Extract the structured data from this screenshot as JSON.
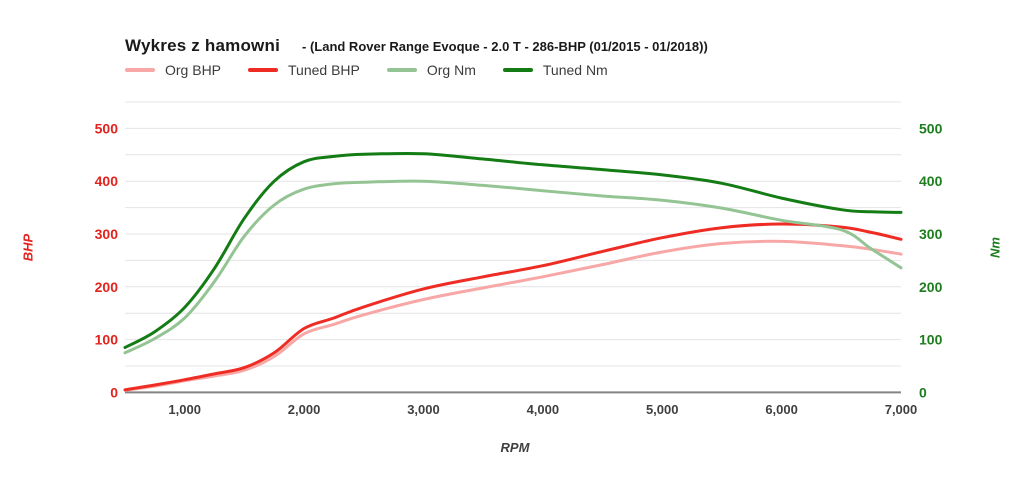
{
  "chart_data": {
    "type": "line",
    "title": "Wykres z hamowni",
    "subtitle": "- (Land Rover Range Evoque - 2.0 T - 286-BHP (01/2015 - 01/2018))",
    "xlabel": "RPM",
    "x_range": [
      500,
      7000
    ],
    "y_max": 550,
    "y_gridline_step": 50,
    "grid_on": true,
    "legend_position": "top",
    "x": [
      500,
      750,
      1000,
      1250,
      1500,
      1750,
      2000,
      2250,
      2500,
      3000,
      3500,
      4000,
      4500,
      5000,
      5500,
      6000,
      6500,
      6750,
      7000
    ],
    "series": [
      {
        "name": "Org BHP",
        "axis": "left",
        "color": "#f7a8a6",
        "values": [
          4,
          12,
          22,
          31,
          42,
          68,
          111,
          129,
          147,
          176,
          198,
          219,
          242,
          266,
          282,
          286,
          278,
          271,
          262
        ]
      },
      {
        "name": "Tuned BHP",
        "axis": "left",
        "color": "#ee2c24",
        "values": [
          5,
          14,
          24,
          35,
          47,
          75,
          121,
          141,
          162,
          196,
          219,
          240,
          267,
          293,
          312,
          319,
          313,
          303,
          290
        ]
      },
      {
        "name": "Org Nm",
        "axis": "right",
        "color": "#94c494",
        "values": [
          75,
          102,
          141,
          210,
          296,
          355,
          385,
          395,
          398,
          400,
          392,
          382,
          372,
          364,
          349,
          326,
          308,
          272,
          236
        ]
      },
      {
        "name": "Tuned Nm",
        "axis": "right",
        "color": "#147c14",
        "values": [
          85,
          115,
          161,
          235,
          330,
          400,
          437,
          447,
          451,
          452,
          442,
          431,
          422,
          412,
          396,
          368,
          346,
          342,
          341
        ]
      }
    ],
    "x_ticks": [
      {
        "value": 1000,
        "label": "1,000"
      },
      {
        "value": 2000,
        "label": "2,000"
      },
      {
        "value": 3000,
        "label": "3,000"
      },
      {
        "value": 4000,
        "label": "4,000"
      },
      {
        "value": 5000,
        "label": "5,000"
      },
      {
        "value": 6000,
        "label": "6,000"
      },
      {
        "value": 7000,
        "label": "7,000"
      }
    ],
    "y_ticks": [
      {
        "value": 0,
        "label": "0"
      },
      {
        "value": 100,
        "label": "100"
      },
      {
        "value": 200,
        "label": "200"
      },
      {
        "value": 300,
        "label": "300"
      },
      {
        "value": 400,
        "label": "400"
      },
      {
        "value": 500,
        "label": "500"
      }
    ],
    "left_axis": {
      "label": "BHP",
      "color": "#e3231d"
    },
    "right_axis": {
      "label": "Nm",
      "color": "#1e7d1e"
    },
    "x_tick_color": "#3f3f3f",
    "grid_color": "#e4e4e4",
    "axis_line_color": "#848484"
  }
}
